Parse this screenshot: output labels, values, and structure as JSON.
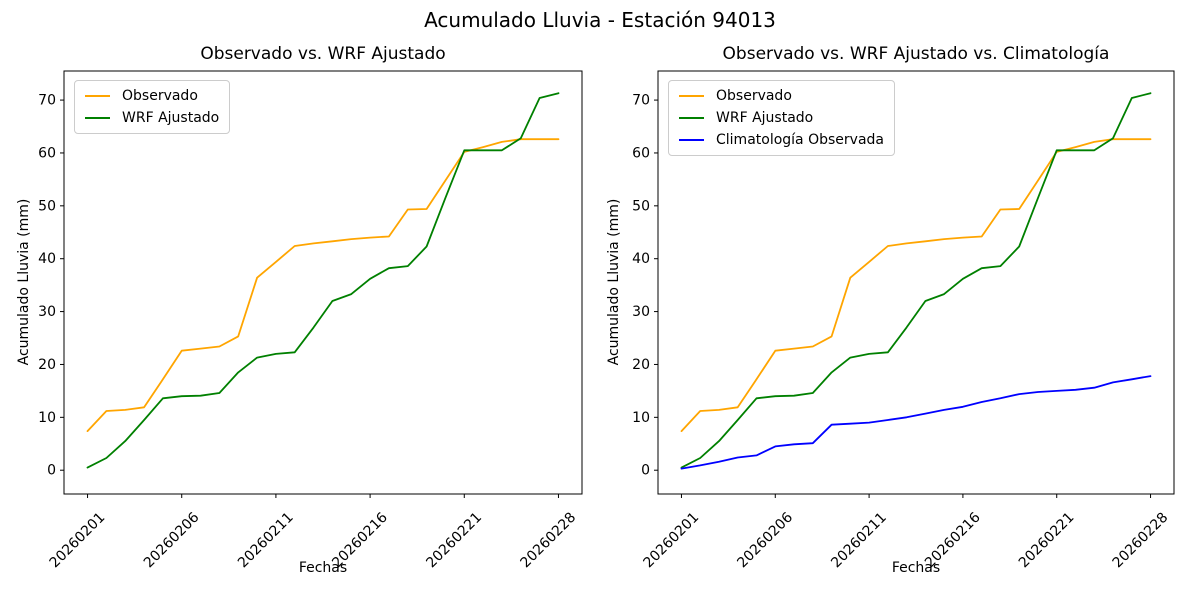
{
  "figure": {
    "title": "Acumulado Lluvia - Estación 94013"
  },
  "chart_data": [
    {
      "type": "line",
      "title": "Observado vs. WRF Ajustado",
      "xlabel": "Fechas",
      "ylabel": "Acumulado Lluvia (mm)",
      "x_tick_positions": [
        0,
        5,
        10,
        15,
        20,
        25
      ],
      "x_tick_labels": [
        "20260201",
        "20260206",
        "20260211",
        "20260216",
        "20260221",
        "20260228"
      ],
      "x_tick_rotation_deg": 45,
      "y_ticks": [
        0,
        10,
        20,
        30,
        40,
        50,
        60,
        70
      ],
      "xlim": [
        -1.25,
        26.25
      ],
      "ylim": [
        -4.5,
        75.5
      ],
      "grid": false,
      "legend_position": "upper left",
      "series": [
        {
          "name": "Observado",
          "color": "#FFA500",
          "values": [
            7.4,
            11.2,
            11.4,
            11.9,
            17.2,
            22.6,
            23.0,
            23.4,
            25.3,
            36.4,
            39.4,
            42.4,
            42.9,
            43.3,
            43.7,
            44.0,
            44.2,
            49.3,
            49.4,
            54.8,
            60.2,
            61.1,
            62.1,
            62.6,
            62.6,
            62.6
          ]
        },
        {
          "name": "WRF Ajustado",
          "color": "#008000",
          "values": [
            0.5,
            2.3,
            5.5,
            9.5,
            13.6,
            14.0,
            14.1,
            14.6,
            18.5,
            21.3,
            22.0,
            22.3,
            27.0,
            32.0,
            33.3,
            36.2,
            38.2,
            38.6,
            42.3,
            51.5,
            60.5,
            60.5,
            60.5,
            62.8,
            70.4,
            71.3
          ]
        }
      ]
    },
    {
      "type": "line",
      "title": "Observado vs. WRF Ajustado vs. Climatología",
      "xlabel": "Fechas",
      "ylabel": "Acumulado Lluvia (mm)",
      "x_tick_positions": [
        0,
        5,
        10,
        15,
        20,
        25
      ],
      "x_tick_labels": [
        "20260201",
        "20260206",
        "20260211",
        "20260216",
        "20260221",
        "20260228"
      ],
      "x_tick_rotation_deg": 45,
      "y_ticks": [
        0,
        10,
        20,
        30,
        40,
        50,
        60,
        70
      ],
      "xlim": [
        -1.25,
        26.25
      ],
      "ylim": [
        -4.5,
        75.5
      ],
      "grid": false,
      "legend_position": "upper left",
      "series": [
        {
          "name": "Observado",
          "color": "#FFA500",
          "values": [
            7.4,
            11.2,
            11.4,
            11.9,
            17.2,
            22.6,
            23.0,
            23.4,
            25.3,
            36.4,
            39.4,
            42.4,
            42.9,
            43.3,
            43.7,
            44.0,
            44.2,
            49.3,
            49.4,
            54.8,
            60.2,
            61.1,
            62.1,
            62.6,
            62.6,
            62.6
          ]
        },
        {
          "name": "WRF Ajustado",
          "color": "#008000",
          "values": [
            0.5,
            2.3,
            5.5,
            9.5,
            13.6,
            14.0,
            14.1,
            14.6,
            18.5,
            21.3,
            22.0,
            22.3,
            27.0,
            32.0,
            33.3,
            36.2,
            38.2,
            38.6,
            42.3,
            51.5,
            60.5,
            60.5,
            60.5,
            62.8,
            70.4,
            71.3
          ]
        },
        {
          "name": "Climatología Observada",
          "color": "#0000FF",
          "values": [
            0.3,
            0.9,
            1.6,
            2.4,
            2.8,
            4.5,
            4.9,
            5.1,
            8.6,
            8.8,
            9.0,
            9.5,
            10.0,
            10.7,
            11.4,
            12.0,
            12.9,
            13.6,
            14.4,
            14.8,
            15.0,
            15.2,
            15.6,
            16.6,
            17.2,
            17.8
          ]
        }
      ]
    }
  ]
}
